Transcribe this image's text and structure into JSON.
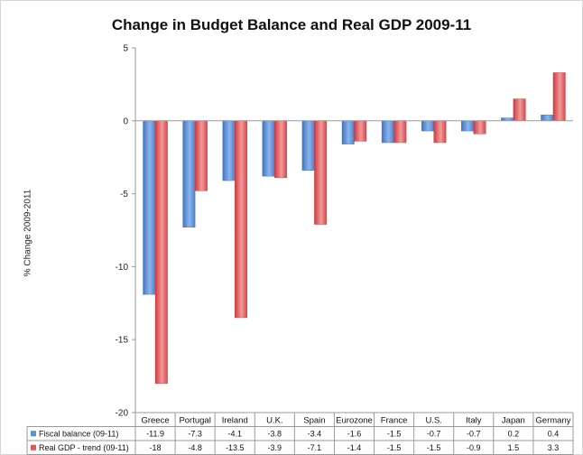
{
  "chart_data": {
    "type": "bar",
    "title": "Change in Budget Balance and Real GDP 2009-11",
    "ylabel": "% Change 2009-2011",
    "xlabel": "",
    "ylim": [
      -20,
      5
    ],
    "yticks": [
      5,
      0,
      -5,
      -10,
      -15,
      -20
    ],
    "grid": false,
    "legend_placement": "data-table-bottom-left",
    "categories": [
      "Greece",
      "Portugal",
      "Ireland",
      "U.K.",
      "Spain",
      "Eurozone",
      "France",
      "U.S.",
      "Italy",
      "Japan",
      "Germany"
    ],
    "series": [
      {
        "name": "Fiscal balance (09-11)",
        "color": "#5b8fd6",
        "values": [
          -11.9,
          -7.3,
          -4.1,
          -3.8,
          -3.4,
          -1.6,
          -1.5,
          -0.7,
          -0.7,
          0.2,
          0.4
        ],
        "labels": [
          "-11.9",
          "-7.3",
          "-4.1",
          "-3.8",
          "-3.4",
          "-1.6",
          "-1.5",
          "-0.7",
          "-0.7",
          "0.2",
          "0.4"
        ]
      },
      {
        "name": "Real GDP - trend (09-11)",
        "color": "#e0565a",
        "values": [
          -18,
          -4.8,
          -13.5,
          -3.9,
          -7.1,
          -1.4,
          -1.5,
          -1.5,
          -0.9,
          1.5,
          3.3
        ],
        "labels": [
          "-18",
          "-4.8",
          "-13.5",
          "-3.9",
          "-7.1",
          "-1.4",
          "-1.5",
          "-1.5",
          "-0.9",
          "1.5",
          "3.3"
        ]
      }
    ]
  }
}
